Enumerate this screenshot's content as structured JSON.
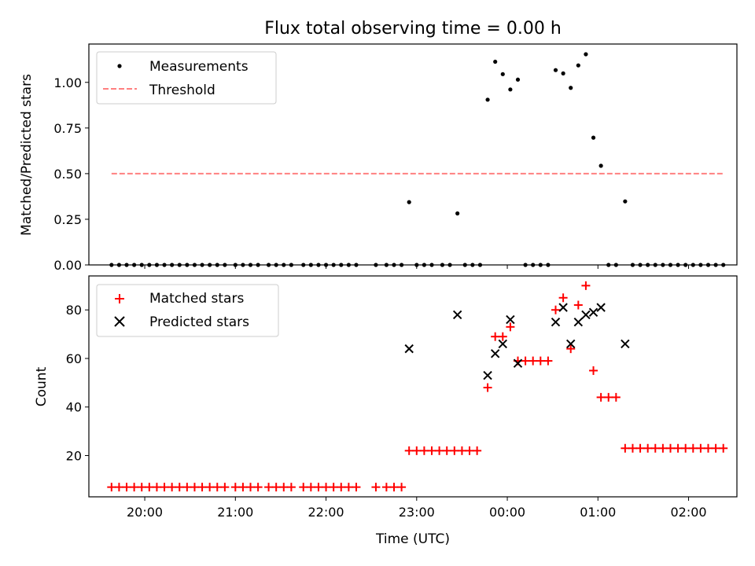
{
  "title": "Flux total observing time = 0.00 h",
  "chart_data": [
    {
      "type": "scatter",
      "title": "Flux total observing time = 0.00 h",
      "xlabel": "",
      "ylabel": "Matched/Predicted stars",
      "xlim": [
        "19:23",
        "02:32"
      ],
      "ylim": [
        0,
        1.21
      ],
      "yticks": [
        "0.00",
        "0.25",
        "0.50",
        "0.75",
        "1.00"
      ],
      "legend_position": "top-left",
      "series": [
        {
          "name": "Measurements",
          "marker": "dot",
          "color": "#000000",
          "points": [
            [
              "19:38",
              0.0
            ],
            [
              "19:43",
              0.0
            ],
            [
              "19:48",
              0.0
            ],
            [
              "19:53",
              0.0
            ],
            [
              "19:58",
              0.0
            ],
            [
              "20:03",
              0.0
            ],
            [
              "20:08",
              0.0
            ],
            [
              "20:13",
              0.0
            ],
            [
              "20:18",
              0.0
            ],
            [
              "20:23",
              0.0
            ],
            [
              "20:28",
              0.0
            ],
            [
              "20:33",
              0.0
            ],
            [
              "20:38",
              0.0
            ],
            [
              "20:43",
              0.0
            ],
            [
              "20:48",
              0.0
            ],
            [
              "20:53",
              0.0
            ],
            [
              "21:00",
              0.0
            ],
            [
              "21:05",
              0.0
            ],
            [
              "21:10",
              0.0
            ],
            [
              "21:15",
              0.0
            ],
            [
              "21:22",
              0.0
            ],
            [
              "21:27",
              0.0
            ],
            [
              "21:32",
              0.0
            ],
            [
              "21:37",
              0.0
            ],
            [
              "21:45",
              0.0
            ],
            [
              "21:50",
              0.0
            ],
            [
              "21:55",
              0.0
            ],
            [
              "22:00",
              0.0
            ],
            [
              "22:05",
              0.0
            ],
            [
              "22:10",
              0.0
            ],
            [
              "22:15",
              0.0
            ],
            [
              "22:20",
              0.0
            ],
            [
              "22:33",
              0.0
            ],
            [
              "22:40",
              0.0
            ],
            [
              "22:45",
              0.0
            ],
            [
              "22:50",
              0.0
            ],
            [
              "22:55",
              0.344
            ],
            [
              "23:00",
              0.0
            ],
            [
              "23:05",
              0.0
            ],
            [
              "23:10",
              0.0
            ],
            [
              "23:17",
              0.0
            ],
            [
              "23:22",
              0.0
            ],
            [
              "23:27",
              0.282
            ],
            [
              "23:32",
              0.0
            ],
            [
              "23:37",
              0.0
            ],
            [
              "23:42",
              0.0
            ],
            [
              "23:47",
              0.905
            ],
            [
              "23:52",
              1.113
            ],
            [
              "23:57",
              1.045
            ],
            [
              "00:02",
              0.961
            ],
            [
              "00:07",
              1.015
            ],
            [
              "00:12",
              0.0
            ],
            [
              "00:17",
              0.0
            ],
            [
              "00:22",
              0.0
            ],
            [
              "00:27",
              0.0
            ],
            [
              "00:32",
              1.067
            ],
            [
              "00:37",
              1.049
            ],
            [
              "00:42",
              0.97
            ],
            [
              "00:47",
              1.093
            ],
            [
              "00:52",
              1.154
            ],
            [
              "00:57",
              0.697
            ],
            [
              "01:02",
              0.543
            ],
            [
              "01:07",
              0.0
            ],
            [
              "01:12",
              0.0
            ],
            [
              "01:18",
              0.348
            ],
            [
              "01:23",
              0.0
            ],
            [
              "01:28",
              0.0
            ],
            [
              "01:33",
              0.0
            ],
            [
              "01:38",
              0.0
            ],
            [
              "01:43",
              0.0
            ],
            [
              "01:48",
              0.0
            ],
            [
              "01:53",
              0.0
            ],
            [
              "01:58",
              0.0
            ],
            [
              "02:03",
              0.0
            ],
            [
              "02:08",
              0.0
            ],
            [
              "02:13",
              0.0
            ],
            [
              "02:18",
              0.0
            ],
            [
              "02:23",
              0.0
            ]
          ]
        },
        {
          "name": "Threshold",
          "style": "dashed-line",
          "color": "#ff8080",
          "points": [
            [
              "19:38",
              0.5
            ],
            [
              "02:23",
              0.5
            ]
          ]
        }
      ]
    },
    {
      "type": "scatter",
      "title": "",
      "xlabel": "Time (UTC)",
      "ylabel": "Count",
      "xlim": [
        "19:23",
        "02:32"
      ],
      "ylim": [
        3,
        94
      ],
      "xticks": [
        "20:00",
        "21:00",
        "22:00",
        "23:00",
        "00:00",
        "01:00",
        "02:00"
      ],
      "yticks": [
        "20",
        "40",
        "60",
        "80"
      ],
      "legend_position": "top-left",
      "series": [
        {
          "name": "Matched stars",
          "marker": "plus",
          "color": "#ff0000",
          "points": [
            [
              "19:38",
              7
            ],
            [
              "19:43",
              7
            ],
            [
              "19:48",
              7
            ],
            [
              "19:53",
              7
            ],
            [
              "19:58",
              7
            ],
            [
              "20:03",
              7
            ],
            [
              "20:08",
              7
            ],
            [
              "20:13",
              7
            ],
            [
              "20:18",
              7
            ],
            [
              "20:23",
              7
            ],
            [
              "20:28",
              7
            ],
            [
              "20:33",
              7
            ],
            [
              "20:38",
              7
            ],
            [
              "20:43",
              7
            ],
            [
              "20:48",
              7
            ],
            [
              "20:53",
              7
            ],
            [
              "21:00",
              7
            ],
            [
              "21:05",
              7
            ],
            [
              "21:10",
              7
            ],
            [
              "21:15",
              7
            ],
            [
              "21:22",
              7
            ],
            [
              "21:27",
              7
            ],
            [
              "21:32",
              7
            ],
            [
              "21:37",
              7
            ],
            [
              "21:45",
              7
            ],
            [
              "21:50",
              7
            ],
            [
              "21:55",
              7
            ],
            [
              "22:00",
              7
            ],
            [
              "22:05",
              7
            ],
            [
              "22:10",
              7
            ],
            [
              "22:15",
              7
            ],
            [
              "22:20",
              7
            ],
            [
              "22:33",
              7
            ],
            [
              "22:40",
              7
            ],
            [
              "22:45",
              7
            ],
            [
              "22:50",
              7
            ],
            [
              "22:55",
              22
            ],
            [
              "23:00",
              22
            ],
            [
              "23:05",
              22
            ],
            [
              "23:10",
              22
            ],
            [
              "23:15",
              22
            ],
            [
              "23:20",
              22
            ],
            [
              "23:25",
              22
            ],
            [
              "23:30",
              22
            ],
            [
              "23:35",
              22
            ],
            [
              "23:40",
              22
            ],
            [
              "23:47",
              48
            ],
            [
              "23:52",
              69
            ],
            [
              "23:57",
              69
            ],
            [
              "00:02",
              73
            ],
            [
              "00:07",
              59
            ],
            [
              "00:12",
              59
            ],
            [
              "00:17",
              59
            ],
            [
              "00:22",
              59
            ],
            [
              "00:27",
              59
            ],
            [
              "00:32",
              80
            ],
            [
              "00:37",
              85
            ],
            [
              "00:42",
              64
            ],
            [
              "00:47",
              82
            ],
            [
              "00:52",
              90
            ],
            [
              "00:57",
              55
            ],
            [
              "01:02",
              44
            ],
            [
              "01:07",
              44
            ],
            [
              "01:12",
              44
            ],
            [
              "01:18",
              23
            ],
            [
              "01:23",
              23
            ],
            [
              "01:28",
              23
            ],
            [
              "01:33",
              23
            ],
            [
              "01:38",
              23
            ],
            [
              "01:43",
              23
            ],
            [
              "01:48",
              23
            ],
            [
              "01:53",
              23
            ],
            [
              "01:58",
              23
            ],
            [
              "02:03",
              23
            ],
            [
              "02:08",
              23
            ],
            [
              "02:13",
              23
            ],
            [
              "02:18",
              23
            ],
            [
              "02:23",
              23
            ]
          ]
        },
        {
          "name": "Predicted stars",
          "marker": "x",
          "color": "#000000",
          "points": [
            [
              "22:55",
              64
            ],
            [
              "23:27",
              78
            ],
            [
              "23:47",
              53
            ],
            [
              "23:52",
              62
            ],
            [
              "23:57",
              66
            ],
            [
              "00:02",
              76
            ],
            [
              "00:07",
              58
            ],
            [
              "00:32",
              75
            ],
            [
              "00:37",
              81
            ],
            [
              "00:42",
              66
            ],
            [
              "00:47",
              75
            ],
            [
              "00:52",
              78
            ],
            [
              "00:57",
              79
            ],
            [
              "01:02",
              81
            ],
            [
              "01:18",
              66
            ]
          ]
        }
      ]
    }
  ]
}
